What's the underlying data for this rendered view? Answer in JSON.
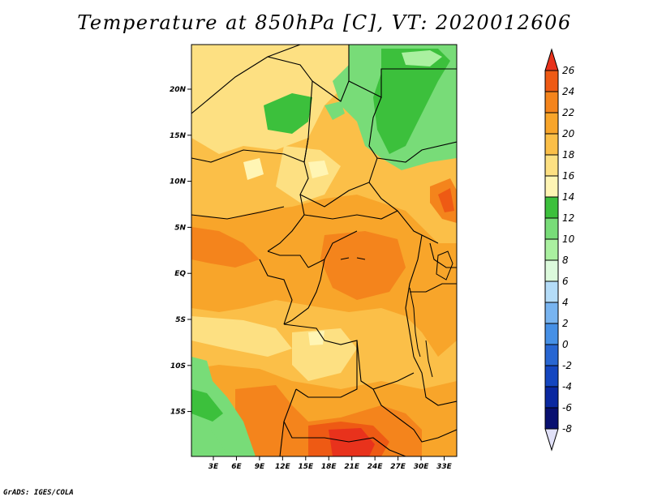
{
  "title": "Temperature at 850hPa [C], VT: 2020012606",
  "footer": "GrADS: IGES/COLA",
  "map": {
    "lat_labels": [
      "20N",
      "15N",
      "10N",
      "5N",
      "EQ",
      "5S",
      "10S",
      "15S"
    ],
    "lon_labels": [
      "3E",
      "6E",
      "9E",
      "12E",
      "15E",
      "18E",
      "21E",
      "24E",
      "27E",
      "30E",
      "33E"
    ]
  },
  "colorbar": {
    "levels": [
      "26",
      "24",
      "22",
      "20",
      "18",
      "16",
      "14",
      "12",
      "10",
      "8",
      "6",
      "4",
      "2",
      "0",
      "-2",
      "-4",
      "-6",
      "-8"
    ],
    "colors": [
      "#e8321c",
      "#ee5a14",
      "#f4841c",
      "#f8a52a",
      "#fbbf48",
      "#fde082",
      "#fff5b4",
      "#3cc03c",
      "#78dc78",
      "#aaf0a0",
      "#dcfadc",
      "#b4dcf8",
      "#78b4f0",
      "#4690e6",
      "#2866d2",
      "#1446c0",
      "#0a28a0",
      "#081070",
      "#e1e1f8"
    ]
  }
}
